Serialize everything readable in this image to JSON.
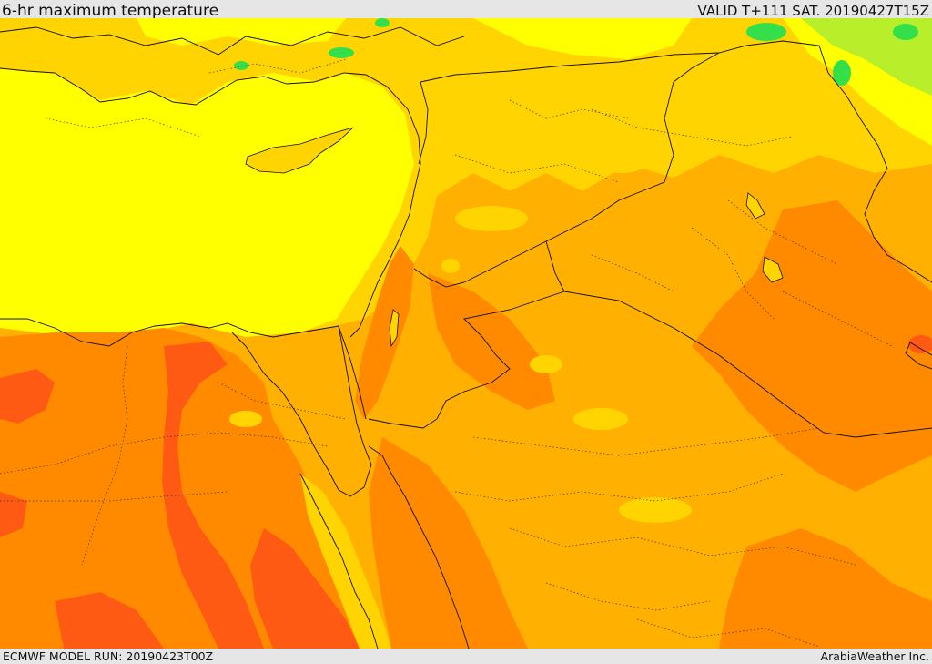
{
  "header": {
    "title": "6-hr maximum temperature",
    "valid_time": "VALID T+111 SAT. 20190427T15Z"
  },
  "footer": {
    "model_run": "ECMWF MODEL RUN: 20190423T00Z",
    "provider": "ArabiaWeather Inc."
  },
  "map": {
    "variable": "6-hr maximum temperature",
    "palette": {
      "cool_green": "#33e04a",
      "light_green": "#b8ef2a",
      "yellow": "#ffff00",
      "light_orange": "#ffd400",
      "orange": "#ffb000",
      "dark_orange": "#ff8a00",
      "red_orange": "#ff5a14",
      "border": "#111111"
    }
  }
}
